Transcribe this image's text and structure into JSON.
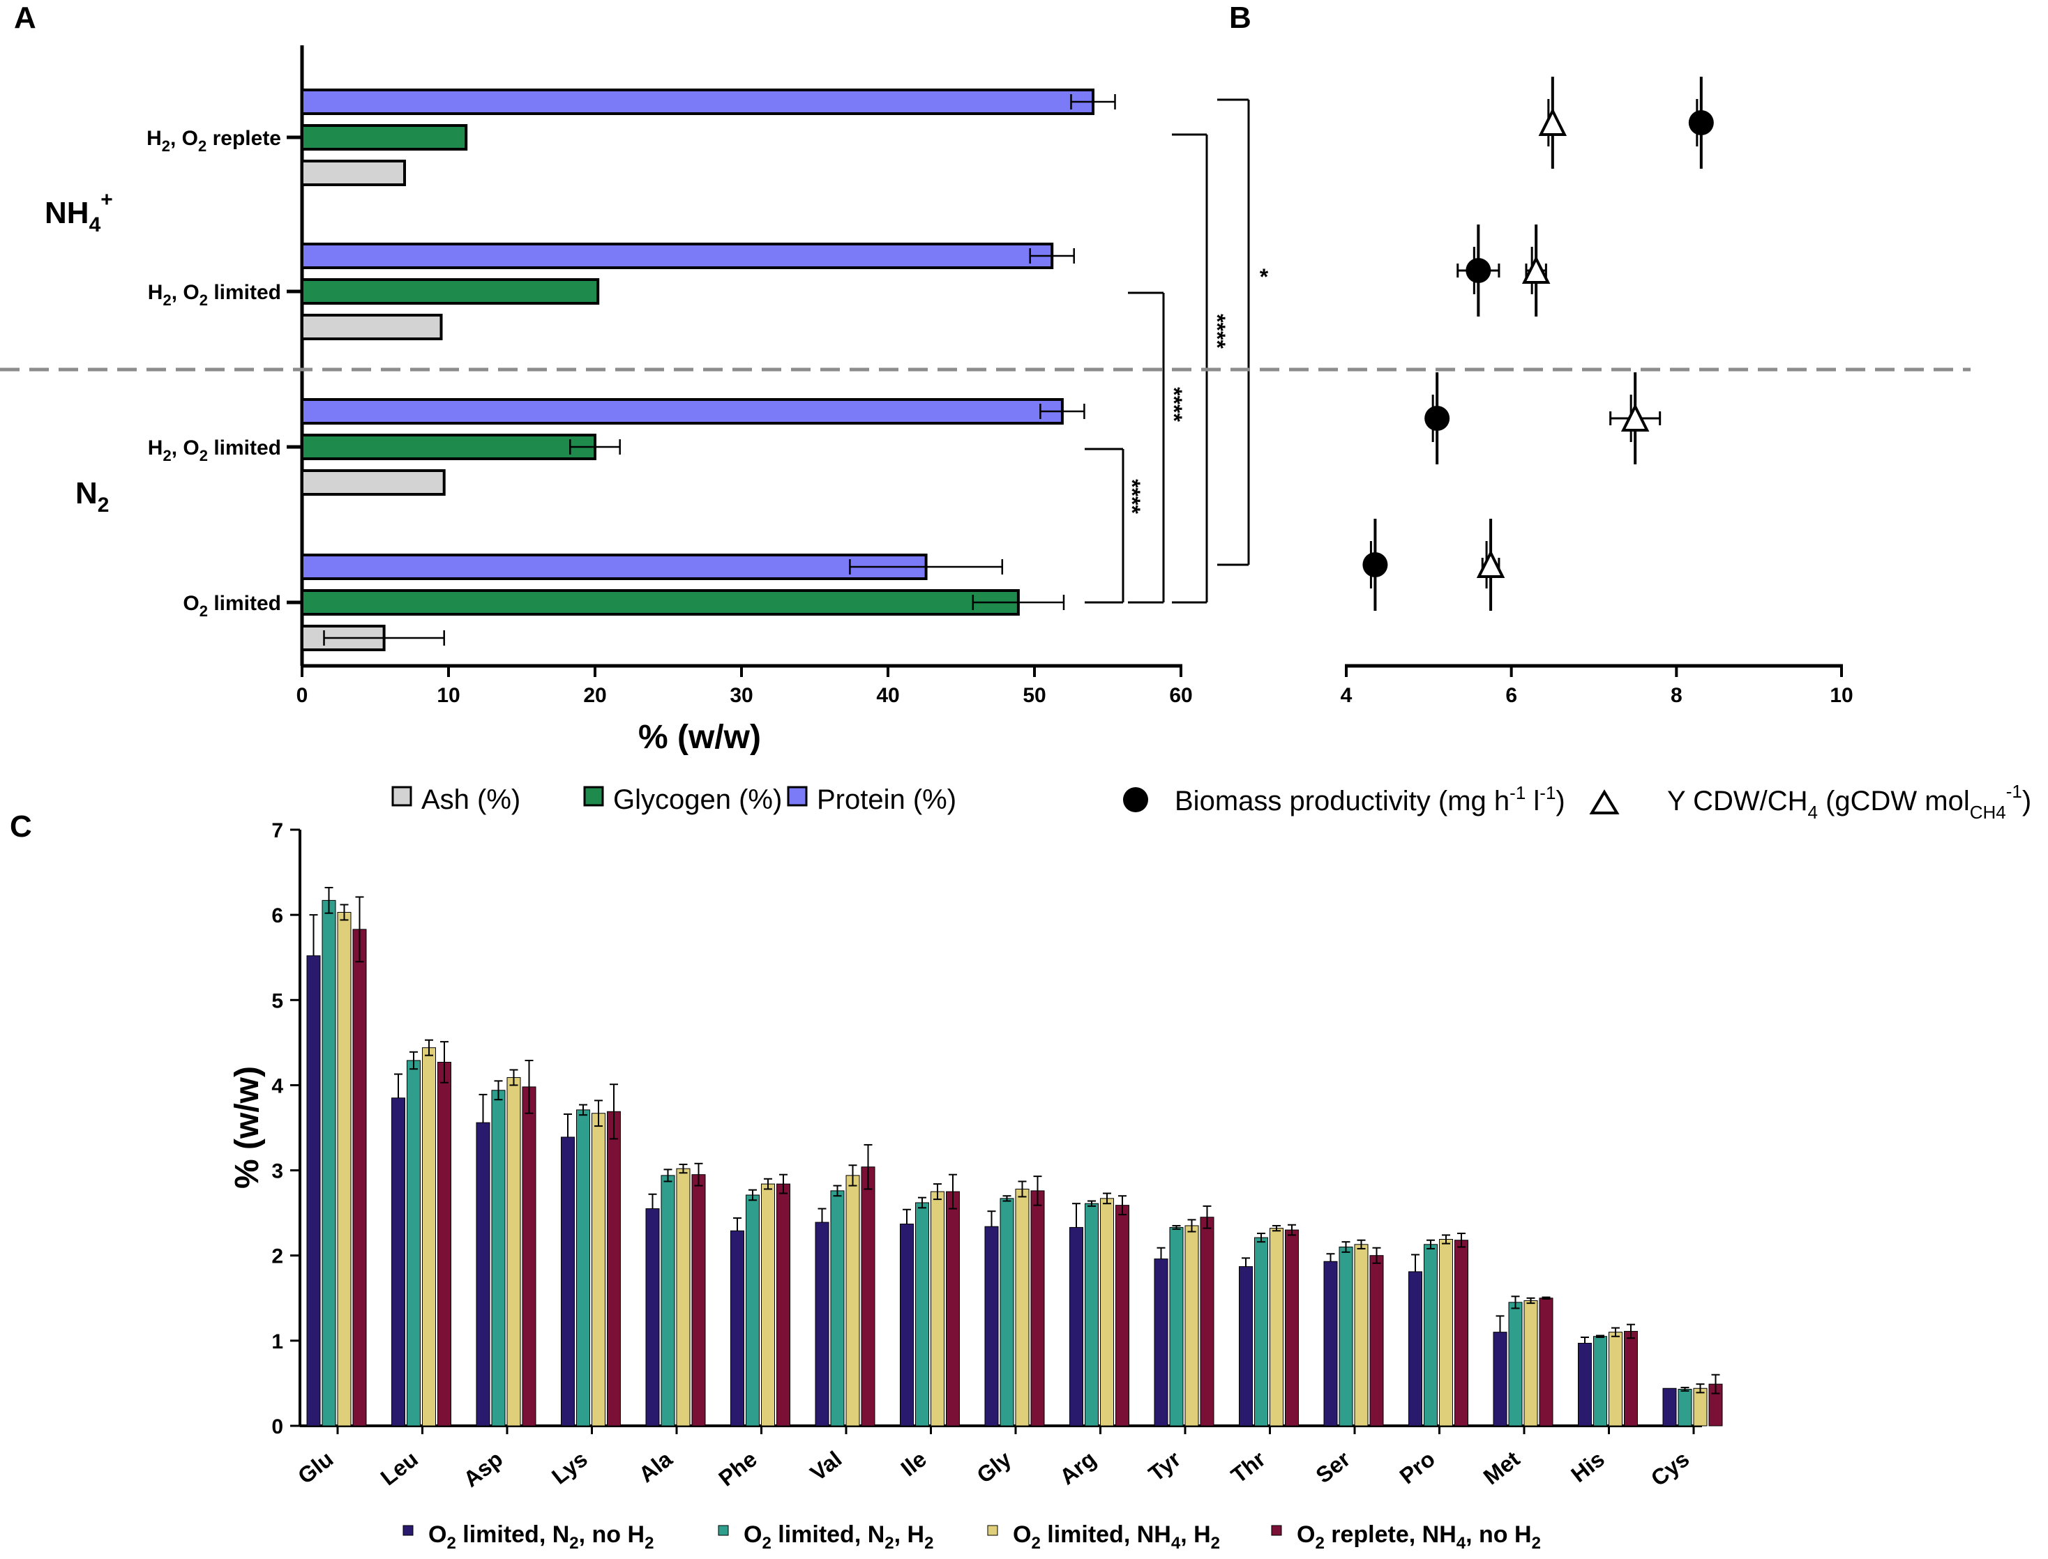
{
  "chart_data": [
    {
      "panel": "A",
      "type": "bar",
      "orientation": "horizontal",
      "xlabel": "% (w/w)",
      "xlim": [
        0,
        60
      ],
      "xticks": [
        0,
        10,
        20,
        30,
        40,
        50,
        60
      ],
      "groups": [
        {
          "label": "NH4+",
          "label_text": "NH",
          "label_sub": "4",
          "label_sup": "+"
        },
        {
          "label": "N2",
          "label_text": "N",
          "label_sub": "2"
        }
      ],
      "conditions": [
        {
          "label": "H2, O2 replete",
          "parts": [
            "H",
            "2",
            ", O",
            "2",
            " replete"
          ],
          "group": 0
        },
        {
          "label": "H2, O2 limited",
          "parts": [
            "H",
            "2",
            ", O",
            "2",
            " limited"
          ],
          "group": 0
        },
        {
          "label": "H2, O2 limited",
          "parts": [
            "H",
            "2",
            ", O",
            "2",
            " limited"
          ],
          "group": 1
        },
        {
          "label": "O2 limited",
          "parts": [
            "O",
            "2",
            " limited"
          ],
          "group": 1
        }
      ],
      "series": [
        {
          "name": "Protein (%)",
          "color": "#7b7bf7",
          "values": [
            54,
            51.2,
            51.9,
            42.6
          ],
          "errors": [
            1.5,
            1.5,
            1.5,
            5.2
          ]
        },
        {
          "name": "Glycogen (%)",
          "color": "#1e8a4c",
          "values": [
            11.2,
            20.2,
            20.0,
            48.9
          ],
          "errors": [
            0,
            0,
            1.7,
            3.1
          ]
        },
        {
          "name": "Ash (%)",
          "color": "#d3d3d3",
          "values": [
            7.0,
            9.5,
            9.7,
            5.6
          ],
          "errors": [
            0,
            0,
            0,
            4.1
          ]
        }
      ],
      "legend": [
        "Ash (%)",
        "Glycogen (%)",
        "Protein (%)"
      ],
      "significance": [
        {
          "label": "****",
          "from_condition": 1,
          "to_condition": 3
        },
        {
          "label": "****",
          "from_condition": 0,
          "to_condition": 3
        },
        {
          "label": "*",
          "from_condition": 0,
          "to_condition": 3
        },
        {
          "label": "****",
          "from_condition": 2,
          "to_condition": 3
        }
      ]
    },
    {
      "panel": "B",
      "type": "scatter",
      "xlim": [
        4,
        10
      ],
      "xticks": [
        4,
        6,
        8,
        10
      ],
      "series": [
        {
          "name": "Biomass productivity (mg h-1 l-1)",
          "marker": "filled-circle",
          "points": [
            {
              "condition": 0,
              "x": 8.3,
              "xerr": 0
            },
            {
              "condition": 1,
              "x": 5.6,
              "xerr": 0.25
            },
            {
              "condition": 2,
              "x": 5.1,
              "xerr": 0
            },
            {
              "condition": 3,
              "x": 4.35,
              "xerr": 0
            }
          ]
        },
        {
          "name": "Y CDW/CH4 (gCDW molCH4-1)",
          "marker": "open-triangle",
          "points": [
            {
              "condition": 0,
              "x": 6.5,
              "xerr": 0
            },
            {
              "condition": 1,
              "x": 6.3,
              "xerr": 0.12
            },
            {
              "condition": 2,
              "x": 7.5,
              "xerr": 0.3
            },
            {
              "condition": 3,
              "x": 5.75,
              "xerr": 0.1
            }
          ]
        }
      ]
    },
    {
      "panel": "C",
      "type": "bar",
      "orientation": "vertical",
      "ylabel": "% (w/w)",
      "ylim": [
        0,
        7
      ],
      "yticks": [
        0,
        1,
        2,
        3,
        4,
        5,
        6,
        7
      ],
      "categories": [
        "Glu",
        "Leu",
        "Asp",
        "Lys",
        "Ala",
        "Phe",
        "Val",
        "Ile",
        "Gly",
        "Arg",
        "Tyr",
        "Thr",
        "Ser",
        "Pro",
        "Met",
        "His",
        "Cys"
      ],
      "series": [
        {
          "name": "O2 limited, N2, no H2",
          "color": "#2a1a6e",
          "values": [
            5.52,
            3.85,
            3.56,
            3.39,
            2.55,
            2.29,
            2.39,
            2.37,
            2.34,
            2.33,
            1.96,
            1.87,
            1.93,
            1.81,
            1.1,
            0.97,
            0.44
          ],
          "errors": [
            0.48,
            0.28,
            0.33,
            0.27,
            0.17,
            0.15,
            0.16,
            0.17,
            0.18,
            0.28,
            0.13,
            0.1,
            0.09,
            0.2,
            0.19,
            0.07,
            0
          ]
        },
        {
          "name": "O2 limited, N2, H2",
          "color": "#2f9e8c",
          "values": [
            6.17,
            4.29,
            3.94,
            3.71,
            2.94,
            2.71,
            2.76,
            2.62,
            2.67,
            2.61,
            2.33,
            2.21,
            2.1,
            2.13,
            1.45,
            1.05,
            0.43
          ],
          "errors": [
            0.15,
            0.1,
            0.11,
            0.06,
            0.07,
            0.06,
            0.06,
            0.06,
            0.03,
            0.03,
            0.02,
            0.05,
            0.06,
            0.05,
            0.07,
            0.01,
            0.02
          ]
        },
        {
          "name": "O2 limited, NH4, H2",
          "color": "#e0cf7a",
          "values": [
            6.03,
            4.44,
            4.09,
            3.67,
            3.02,
            2.84,
            2.94,
            2.75,
            2.78,
            2.67,
            2.35,
            2.32,
            2.13,
            2.19,
            1.47,
            1.1,
            0.44
          ],
          "errors": [
            0.09,
            0.09,
            0.09,
            0.15,
            0.05,
            0.06,
            0.12,
            0.09,
            0.09,
            0.06,
            0.07,
            0.03,
            0.05,
            0.05,
            0.03,
            0.05,
            0.05
          ]
        },
        {
          "name": "O2 replete, NH4, no H2",
          "color": "#7a1036",
          "values": [
            5.83,
            4.27,
            3.98,
            3.69,
            2.95,
            2.84,
            3.04,
            2.75,
            2.76,
            2.59,
            2.45,
            2.3,
            2.0,
            2.18,
            1.5,
            1.11,
            0.49
          ],
          "errors": [
            0.38,
            0.24,
            0.31,
            0.32,
            0.13,
            0.11,
            0.26,
            0.2,
            0.17,
            0.11,
            0.13,
            0.06,
            0.09,
            0.08,
            0.01,
            0.08,
            0.11
          ]
        }
      ]
    }
  ],
  "panel_labels": {
    "a": "A",
    "b": "B",
    "c": "C"
  },
  "legend_ab": {
    "ash": "Ash (%)",
    "glycogen": "Glycogen (%)",
    "protein": "Protein (%)",
    "biomass_main": "Biomass productivity (mg h",
    "biomass_sup1": "-1",
    "biomass_mid": " l",
    "biomass_sup2": "-1",
    "biomass_end": ")",
    "ycdw_main": "Y CDW/CH",
    "ycdw_sub1": "4",
    "ycdw_mid": " (gCDW mol",
    "ycdw_sub2": "CH4",
    "ycdw_sup": "-1",
    "ycdw_end": ")"
  },
  "legend_c": [
    [
      "O",
      "2",
      " limited, N",
      "2",
      ", no H",
      "2"
    ],
    [
      "O",
      "2",
      " limited, N",
      "2",
      ", H",
      "2"
    ],
    [
      "O",
      "2",
      " limited, NH",
      "4",
      ", H",
      "2"
    ],
    [
      "O",
      "2",
      " replete, NH",
      "4",
      ", no H",
      "2"
    ]
  ],
  "colors": {
    "protein": "#7b7bf7",
    "glycogen": "#1e8a4c",
    "ash": "#d3d3d3",
    "divider": "#8c8c8c"
  }
}
